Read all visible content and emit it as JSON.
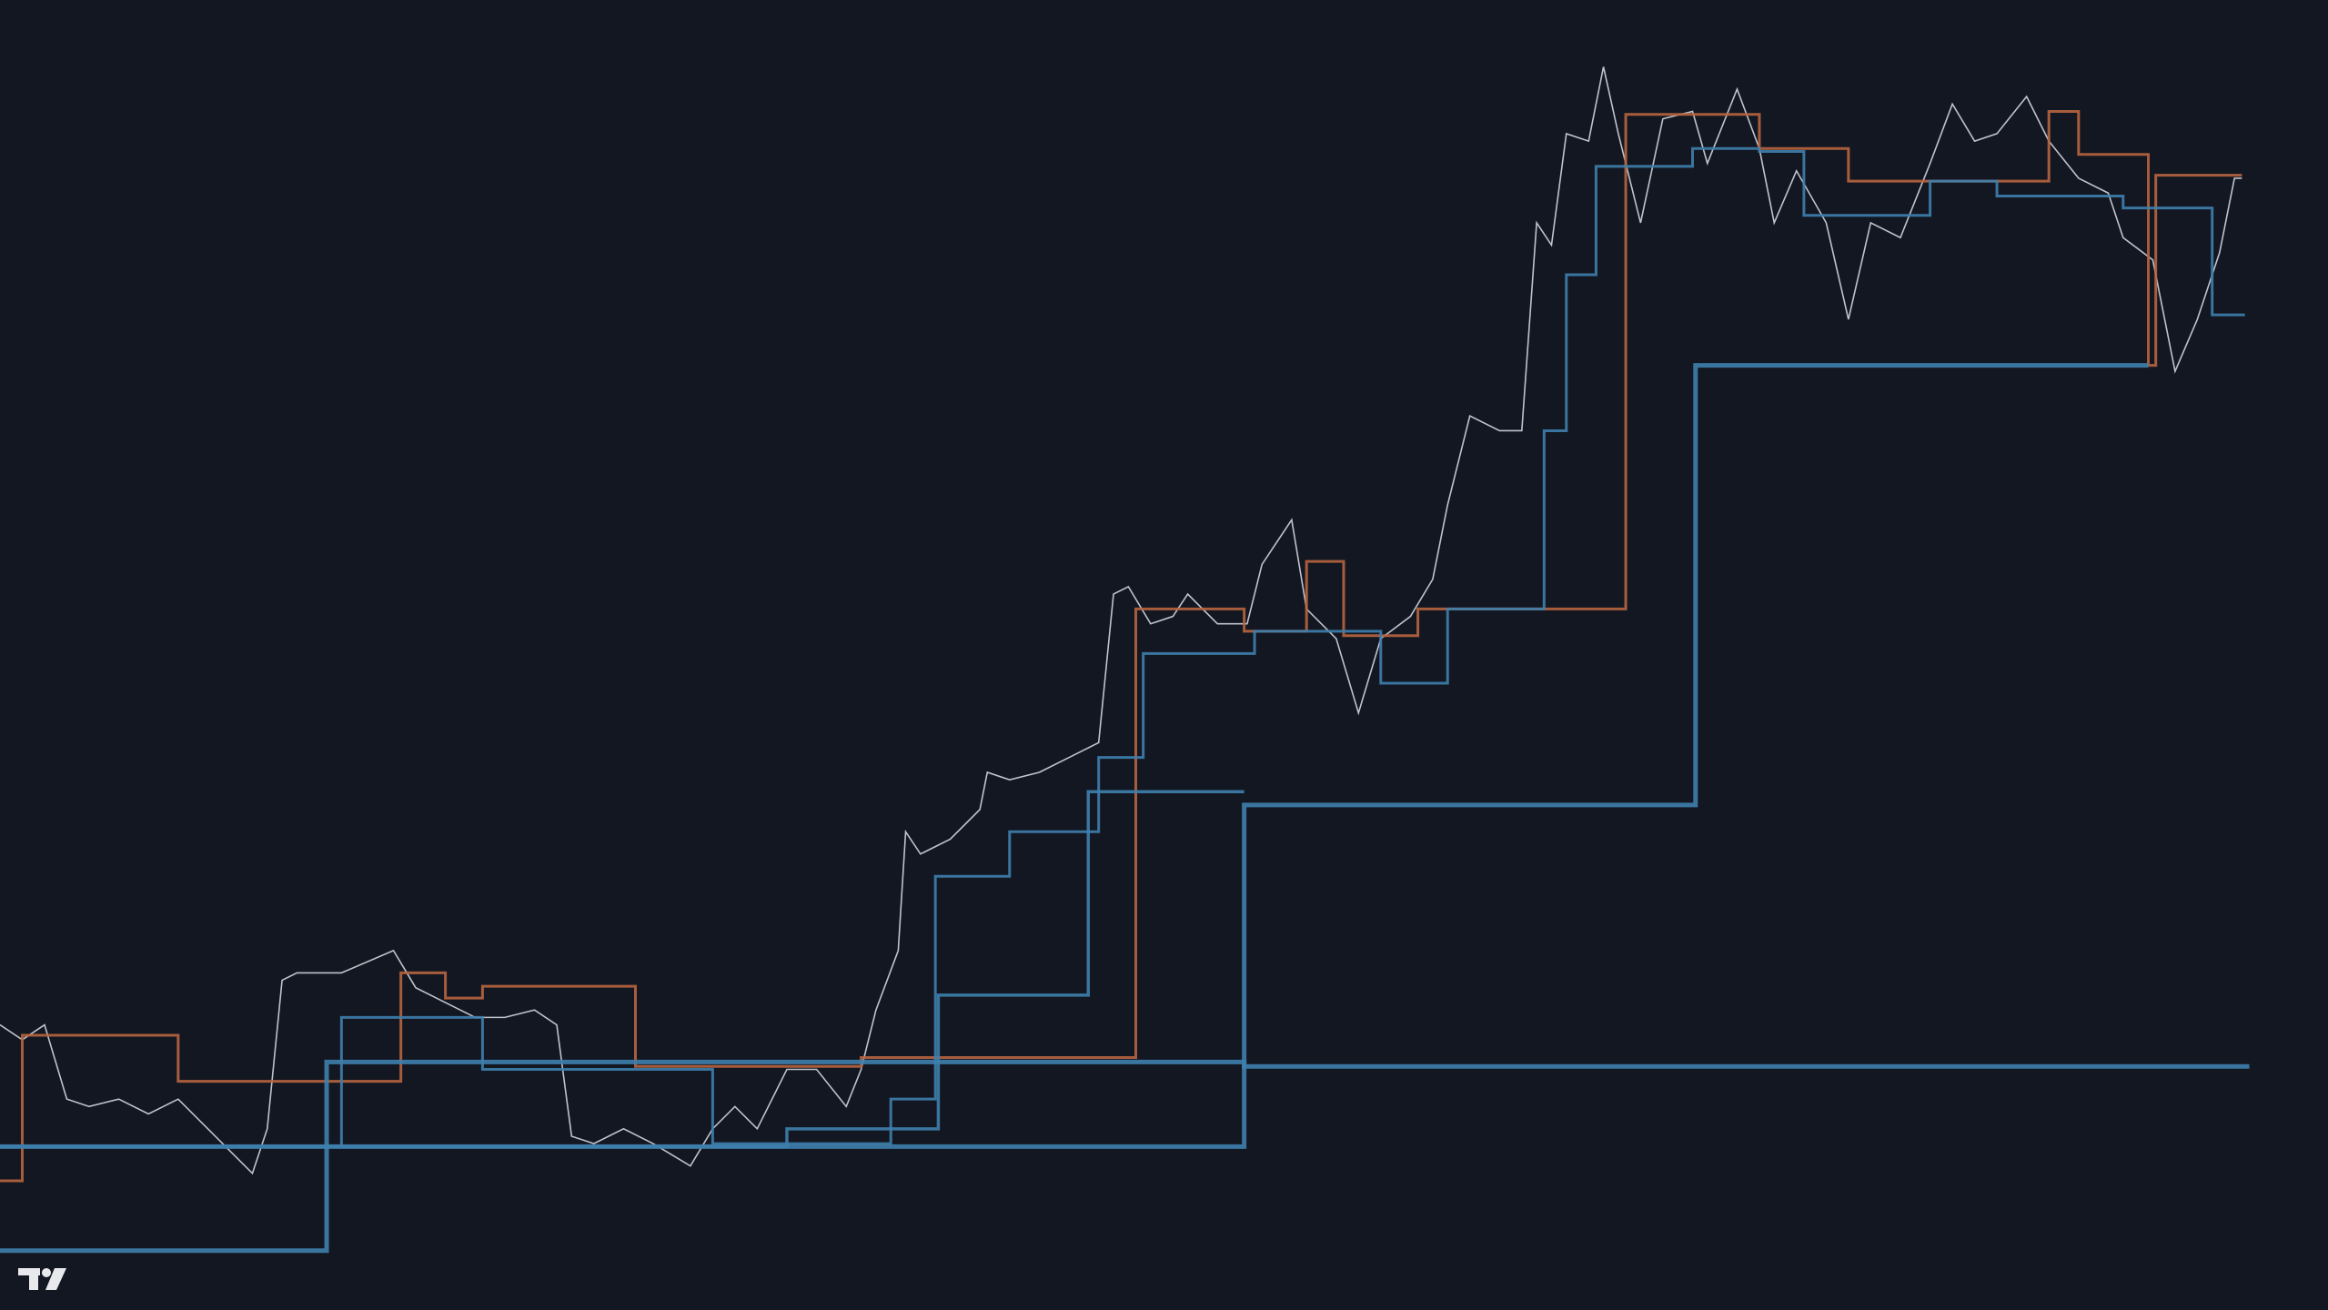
{
  "chart_data": {
    "type": "line",
    "xlim": [
      0,
      1568
    ],
    "ylim": [
      0,
      882
    ],
    "series": [
      {
        "color": "#c9ccd4",
        "line_shape": "linear",
        "x": [
          0,
          15,
          30,
          45,
          60,
          80,
          100,
          120,
          140,
          155,
          170,
          180,
          190,
          200,
          230,
          265,
          280,
          300,
          320,
          340,
          360,
          375,
          385,
          400,
          420,
          440,
          465,
          480,
          495,
          510,
          530,
          550,
          570,
          580,
          590,
          605,
          610,
          620,
          640,
          660,
          665,
          680,
          700,
          720,
          740,
          750,
          760,
          775,
          790,
          800,
          820,
          840,
          850,
          870,
          880,
          900,
          915,
          930,
          950,
          965,
          975,
          990,
          1010,
          1025,
          1035,
          1045,
          1055,
          1070,
          1080,
          1090,
          1105,
          1120,
          1140,
          1150,
          1170,
          1185,
          1195,
          1210,
          1230,
          1245,
          1260,
          1280,
          1300,
          1315,
          1330,
          1345,
          1365,
          1380,
          1400,
          1420,
          1430,
          1450,
          1465,
          1480,
          1495,
          1505,
          1510
        ],
        "values": [
          192,
          182,
          192,
          142,
          137,
          142,
          132,
          142,
          122,
          107,
          92,
          122,
          222,
          227,
          227,
          242,
          217,
          207,
          197,
          197,
          202,
          192,
          117,
          112,
          122,
          112,
          97,
          122,
          137,
          122,
          162,
          162,
          137,
          162,
          202,
          242,
          322,
          307,
          317,
          337,
          362,
          357,
          362,
          372,
          382,
          482,
          487,
          462,
          467,
          482,
          462,
          462,
          502,
          532,
          472,
          452,
          402,
          452,
          467,
          492,
          542,
          602,
          592,
          592,
          732,
          717,
          792,
          787,
          837,
          792,
          732,
          802,
          807,
          772,
          822,
          782,
          732,
          767,
          732,
          667,
          732,
          722,
          772,
          812,
          787,
          792,
          817,
          787,
          762,
          752,
          722,
          707,
          632,
          667,
          712,
          762,
          762
        ]
      },
      {
        "color": "#b8653f",
        "line_shape": "hv",
        "x": [
          0,
          15,
          120,
          270,
          300,
          325,
          428,
          580,
          765,
          838,
          880,
          905,
          955,
          1095,
          1185,
          1245,
          1300,
          1380,
          1400,
          1447,
          1452,
          1510
        ],
        "values": [
          87,
          185,
          154,
          227,
          210,
          218,
          164,
          170,
          472,
          457,
          504,
          454,
          472,
          805,
          782,
          760,
          760,
          807,
          778,
          636,
          764,
          764
        ]
      },
      {
        "color": "#3f7fad",
        "line_shape": "hv",
        "x": [
          0,
          220,
          838,
          1515
        ],
        "values": [
          40,
          167,
          164,
          164
        ]
      },
      {
        "color": "#3f7fad",
        "line_shape": "hv",
        "x": [
          0,
          838,
          1142,
          1447
        ],
        "values": [
          110,
          340,
          636,
          636
        ]
      },
      {
        "color": "#3f7fad",
        "line_shape": "hv",
        "x": [
          0,
          530,
          632,
          733,
          838
        ],
        "values": [
          110,
          122,
          212,
          349,
          349
        ]
      },
      {
        "color": "#3f7fad",
        "line_shape": "hv",
        "x": [
          200,
          230,
          325,
          480,
          600,
          630,
          680,
          740,
          770,
          845,
          930,
          975,
          1040,
          1055,
          1075,
          1140,
          1185,
          1215,
          1300,
          1345,
          1430,
          1490,
          1512
        ],
        "values": [
          110,
          197,
          162,
          112,
          142,
          292,
          322,
          372,
          442,
          457,
          422,
          472,
          592,
          697,
          770,
          782,
          780,
          737,
          760,
          750,
          742,
          670,
          670
        ]
      }
    ]
  }
}
